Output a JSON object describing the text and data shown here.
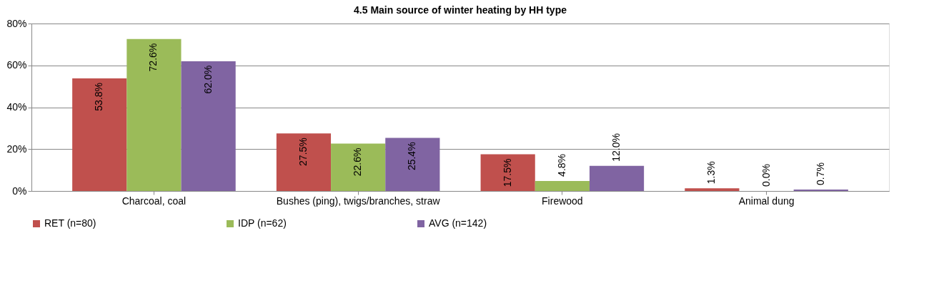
{
  "chart_data": {
    "type": "bar",
    "title": "4.5 Main source of winter heating by HH type",
    "categories": [
      "Charcoal, coal",
      "Bushes (ping), twigs/branches, straw",
      "Firewood",
      "Animal dung"
    ],
    "series": [
      {
        "name": "RET (n=80)",
        "color": "#c0504d",
        "values": [
          53.8,
          27.5,
          17.5,
          1.3
        ],
        "value_labels": [
          "53.8%",
          "27.5%",
          "17.5%",
          "1.3%"
        ]
      },
      {
        "name": "IDP (n=62)",
        "color": "#9bbb59",
        "values": [
          72.6,
          22.6,
          4.8,
          0.0
        ],
        "value_labels": [
          "72.6%",
          "22.6%",
          "4.8%",
          "0.0%"
        ]
      },
      {
        "name": "AVG (n=142)",
        "color": "#8064a2",
        "values": [
          62.0,
          25.4,
          12.0,
          0.7
        ],
        "value_labels": [
          "62.0%",
          "25.4%",
          "12.0%",
          "0.7%"
        ]
      }
    ],
    "ylim": [
      0,
      80
    ],
    "yticks": [
      {
        "value": 0,
        "label": "0%"
      },
      {
        "value": 20,
        "label": "20%"
      },
      {
        "value": 40,
        "label": "40%"
      },
      {
        "value": 60,
        "label": "60%"
      },
      {
        "value": 80,
        "label": "80%"
      }
    ],
    "grid": "y",
    "legend": "bottom"
  }
}
